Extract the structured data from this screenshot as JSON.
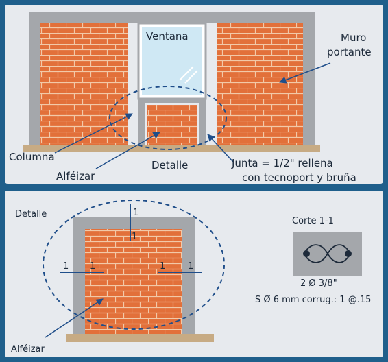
{
  "top": {
    "labels": {
      "window": "Ventana",
      "wall_line1": "Muro",
      "wall_line2": "portante",
      "column": "Columna",
      "sill": "Alféizar",
      "detail": "Detalle",
      "joint_line1": "Junta = 1/2\" rellena",
      "joint_line2": "con tecnoport y bruña"
    }
  },
  "bottom": {
    "labels": {
      "detail": "Detalle",
      "section_mark": "1",
      "section_title": "Corte 1-1",
      "rebar": "2 Ø 3/8\"",
      "stirrups": "S Ø 6 mm corrug.: 1 @.15",
      "sill": "Alféizar"
    }
  },
  "colors": {
    "frame": "#1f5f8b",
    "panel": "#e7eaee",
    "brick": "#e2703a",
    "mortar": "#f2c9a8",
    "concrete": "#a4a7ab",
    "floor": "#c7ab84",
    "glass": "#cfe8f4",
    "dashed": "#1f4e8a",
    "leader": "#1f4e8a"
  }
}
